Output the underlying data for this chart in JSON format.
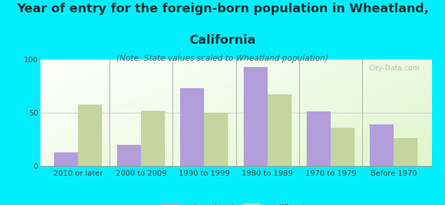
{
  "categories": [
    "2010 or later",
    "2000 to 2009",
    "1990 to 1999",
    "1980 to 1989",
    "1970 to 1979",
    "Before 1970"
  ],
  "wheatland_values": [
    13,
    20,
    73,
    93,
    51,
    39
  ],
  "california_values": [
    58,
    52,
    50,
    67,
    36,
    26
  ],
  "wheatland_color": "#b39ddb",
  "california_color": "#c5d5a0",
  "title_line1": "Year of entry for the foreign-born population in Wheatland,",
  "title_line2": "California",
  "subtitle": "(Note: State values scaled to Wheatland population)",
  "legend_wheatland": "Wheatland",
  "legend_california": "California",
  "ylim": [
    0,
    100
  ],
  "yticks": [
    0,
    50,
    100
  ],
  "background_outer": "#00eeff",
  "title_color": "#003333",
  "subtitle_color": "#336666",
  "title_fontsize": 13,
  "subtitle_fontsize": 8.5,
  "tick_fontsize": 8,
  "legend_fontsize": 9.5,
  "bar_width": 0.38,
  "watermark": "City-Data.com"
}
